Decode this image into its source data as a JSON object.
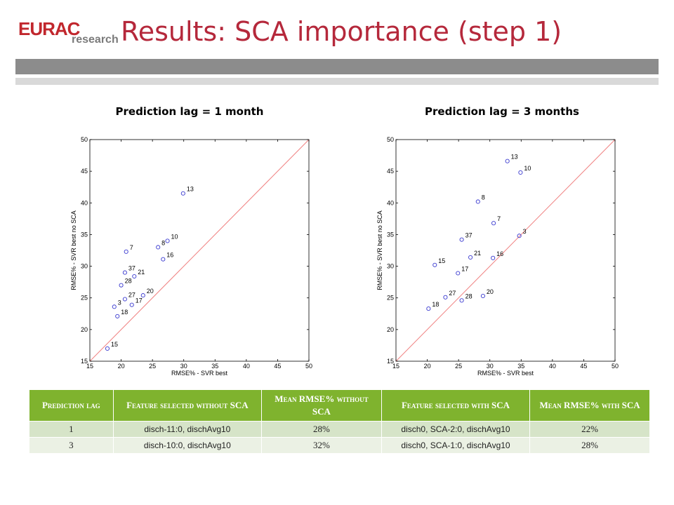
{
  "logo": {
    "brand": "EURAC",
    "sub": "research"
  },
  "slide": {
    "title": "Results: SCA importance (step 1)"
  },
  "chart_data": [
    {
      "type": "scatter",
      "title": "Prediction lag = 1 month",
      "xlabel": "RMSE% - SVR best",
      "ylabel": "RMSE% - SVR best no SCA",
      "xlim": [
        15,
        50
      ],
      "ylim": [
        15,
        50
      ],
      "xticks": [
        "15",
        "20",
        "25",
        "30",
        "35",
        "40",
        "45",
        "50"
      ],
      "yticks": [
        "15",
        "20",
        "25",
        "30",
        "35",
        "40",
        "45",
        "50"
      ],
      "grid": false,
      "reference_line": "y = x",
      "points": [
        {
          "label": "13",
          "x": 29.9,
          "y": 41.5
        },
        {
          "label": "7",
          "x": 20.8,
          "y": 32.3
        },
        {
          "label": "8",
          "x": 25.9,
          "y": 33.0
        },
        {
          "label": "10",
          "x": 27.4,
          "y": 34.0
        },
        {
          "label": "16",
          "x": 26.7,
          "y": 31.1
        },
        {
          "label": "37",
          "x": 20.6,
          "y": 29.0
        },
        {
          "label": "21",
          "x": 22.1,
          "y": 28.4
        },
        {
          "label": "28",
          "x": 20.0,
          "y": 27.0
        },
        {
          "label": "27",
          "x": 20.6,
          "y": 24.8
        },
        {
          "label": "20",
          "x": 23.5,
          "y": 25.4
        },
        {
          "label": "3",
          "x": 18.9,
          "y": 23.6
        },
        {
          "label": "17",
          "x": 21.7,
          "y": 23.9
        },
        {
          "label": "18",
          "x": 19.4,
          "y": 22.1
        },
        {
          "label": "15",
          "x": 17.8,
          "y": 17.0
        }
      ]
    },
    {
      "type": "scatter",
      "title": "Prediction lag = 3 months",
      "xlabel": "RMSE% - SVR best",
      "ylabel": "RMSE% - SVR best no SCA",
      "xlim": [
        15,
        50
      ],
      "ylim": [
        15,
        50
      ],
      "xticks": [
        "15",
        "20",
        "25",
        "30",
        "35",
        "40",
        "45",
        "50"
      ],
      "yticks": [
        "15",
        "20",
        "25",
        "30",
        "35",
        "40",
        "45",
        "50"
      ],
      "grid": false,
      "reference_line": "y = x",
      "points": [
        {
          "label": "13",
          "x": 32.8,
          "y": 46.6
        },
        {
          "label": "10",
          "x": 34.9,
          "y": 44.8
        },
        {
          "label": "8",
          "x": 28.1,
          "y": 40.2
        },
        {
          "label": "7",
          "x": 30.6,
          "y": 36.8
        },
        {
          "label": "3",
          "x": 34.7,
          "y": 34.8
        },
        {
          "label": "37",
          "x": 25.5,
          "y": 34.2
        },
        {
          "label": "21",
          "x": 26.9,
          "y": 31.4
        },
        {
          "label": "16",
          "x": 30.5,
          "y": 31.3
        },
        {
          "label": "15",
          "x": 21.2,
          "y": 30.2
        },
        {
          "label": "17",
          "x": 24.9,
          "y": 28.9
        },
        {
          "label": "27",
          "x": 22.9,
          "y": 25.1
        },
        {
          "label": "28",
          "x": 25.5,
          "y": 24.6
        },
        {
          "label": "20",
          "x": 28.9,
          "y": 25.3
        },
        {
          "label": "18",
          "x": 20.2,
          "y": 23.3
        }
      ]
    }
  ],
  "table": {
    "headers": [
      "Prediction lag",
      "Feature selected without SCA",
      "Mean RMSE% without SCA",
      "Feature selected with SCA",
      "Mean RMSE% with SCA"
    ],
    "rows": [
      [
        "1",
        "disch-11:0, dischAvg10",
        "28%",
        "disch0, SCA-2:0, dischAvg10",
        "22%"
      ],
      [
        "3",
        "disch-10:0, dischAvg10",
        "32%",
        "disch0, SCA-1:0, dischAvg10",
        "28%"
      ]
    ]
  },
  "colors": {
    "title": "#b5283b",
    "header_bg": "#7fb32e",
    "row_a": "#d6e4c8",
    "row_b": "#ebf1e4",
    "marker": "#3a3ad0",
    "reference_line": "#f08080"
  }
}
